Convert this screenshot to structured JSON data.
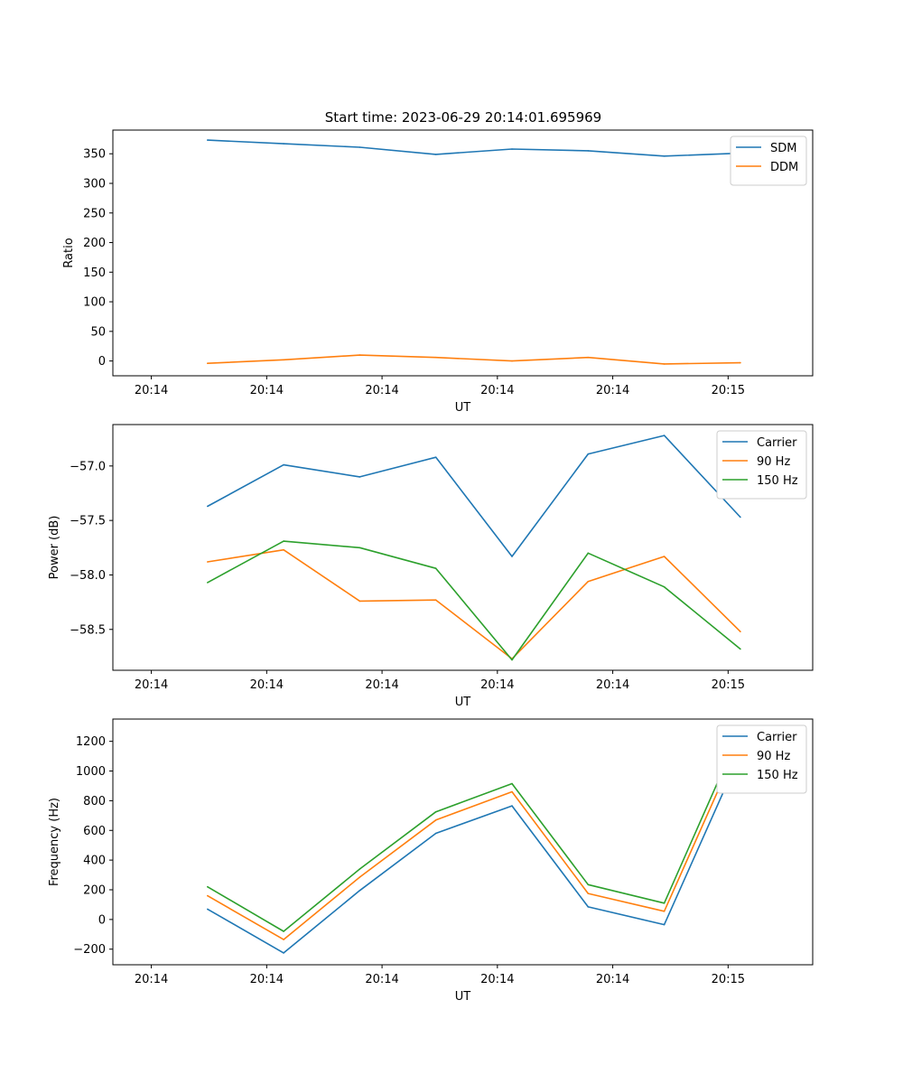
{
  "figure_title": "Start time: 2023-06-29 20:14:01.695969",
  "chart_data": [
    {
      "type": "line",
      "ylabel": "Ratio",
      "xlabel": "UT",
      "xlim": [
        -0.5,
        8.6
      ],
      "ylim": [
        -25,
        390
      ],
      "x_ticks": [
        {
          "pos": 0,
          "label": "20:14"
        },
        {
          "pos": 1.5,
          "label": "20:14"
        },
        {
          "pos": 3,
          "label": "20:14"
        },
        {
          "pos": 4.5,
          "label": "20:14"
        },
        {
          "pos": 6,
          "label": "20:14"
        },
        {
          "pos": 7.5,
          "label": "20:15"
        }
      ],
      "y_ticks": [
        0,
        50,
        100,
        150,
        200,
        250,
        300,
        350
      ],
      "x": [
        0.73,
        1.72,
        2.71,
        3.7,
        4.69,
        5.68,
        6.67,
        7.66
      ],
      "series": [
        {
          "name": "SDM",
          "color": "#1f77b4",
          "values": [
            373,
            367,
            361,
            349,
            358,
            355,
            346,
            351
          ]
        },
        {
          "name": "DDM",
          "color": "#ff7f0e",
          "values": [
            -4,
            2,
            10,
            6,
            0,
            6,
            -5,
            -3
          ]
        }
      ],
      "legend_position": "top-right",
      "grid": false
    },
    {
      "type": "line",
      "ylabel": "Power (dB)",
      "xlabel": "UT",
      "xlim": [
        -0.5,
        8.6
      ],
      "ylim": [
        -58.875,
        -56.62
      ],
      "x_ticks": [
        {
          "pos": 0,
          "label": "20:14"
        },
        {
          "pos": 1.5,
          "label": "20:14"
        },
        {
          "pos": 3,
          "label": "20:14"
        },
        {
          "pos": 4.5,
          "label": "20:14"
        },
        {
          "pos": 6,
          "label": "20:14"
        },
        {
          "pos": 7.5,
          "label": "20:15"
        }
      ],
      "y_ticks": [
        -57.0,
        -57.5,
        -58.0,
        -58.5
      ],
      "y_tick_labels": [
        "−57.0",
        "−57.5",
        "−58.0",
        "−58.5"
      ],
      "x": [
        0.73,
        1.72,
        2.71,
        3.7,
        4.69,
        5.68,
        6.67,
        7.66
      ],
      "series": [
        {
          "name": "Carrier",
          "color": "#1f77b4",
          "values": [
            -57.37,
            -56.99,
            -57.1,
            -56.92,
            -57.83,
            -56.89,
            -56.72,
            -57.47
          ]
        },
        {
          "name": "90 Hz",
          "color": "#ff7f0e",
          "values": [
            -57.88,
            -57.77,
            -58.24,
            -58.23,
            -58.77,
            -58.06,
            -57.83,
            -58.52
          ]
        },
        {
          "name": "150 Hz",
          "color": "#2ca02c",
          "values": [
            -58.07,
            -57.69,
            -57.75,
            -57.94,
            -58.78,
            -57.8,
            -58.11,
            -58.68
          ]
        }
      ],
      "legend_position": "top-right",
      "grid": false
    },
    {
      "type": "line",
      "ylabel": "Frequency (Hz)",
      "xlabel": "UT",
      "xlim": [
        -0.5,
        8.6
      ],
      "ylim": [
        -305,
        1350
      ],
      "x_ticks": [
        {
          "pos": 0,
          "label": "20:14"
        },
        {
          "pos": 1.5,
          "label": "20:14"
        },
        {
          "pos": 3,
          "label": "20:14"
        },
        {
          "pos": 4.5,
          "label": "20:14"
        },
        {
          "pos": 6,
          "label": "20:14"
        },
        {
          "pos": 7.5,
          "label": "20:15"
        }
      ],
      "y_ticks": [
        -200,
        0,
        200,
        400,
        600,
        800,
        1000,
        1200
      ],
      "y_tick_labels": [
        "−200",
        "0",
        "200",
        "400",
        "600",
        "800",
        "1000",
        "1200"
      ],
      "x": [
        0.73,
        1.72,
        2.71,
        3.7,
        4.69,
        5.68,
        6.67,
        7.66
      ],
      "series": [
        {
          "name": "Carrier",
          "color": "#1f77b4",
          "values": [
            70,
            -225,
            195,
            580,
            765,
            85,
            -35,
            1115
          ]
        },
        {
          "name": "90 Hz",
          "color": "#ff7f0e",
          "values": [
            160,
            -135,
            285,
            670,
            860,
            175,
            55,
            1205
          ]
        },
        {
          "name": "150 Hz",
          "color": "#2ca02c",
          "values": [
            220,
            -80,
            340,
            725,
            915,
            235,
            110,
            1270
          ]
        }
      ],
      "legend_position": "top-right",
      "grid": false
    }
  ]
}
